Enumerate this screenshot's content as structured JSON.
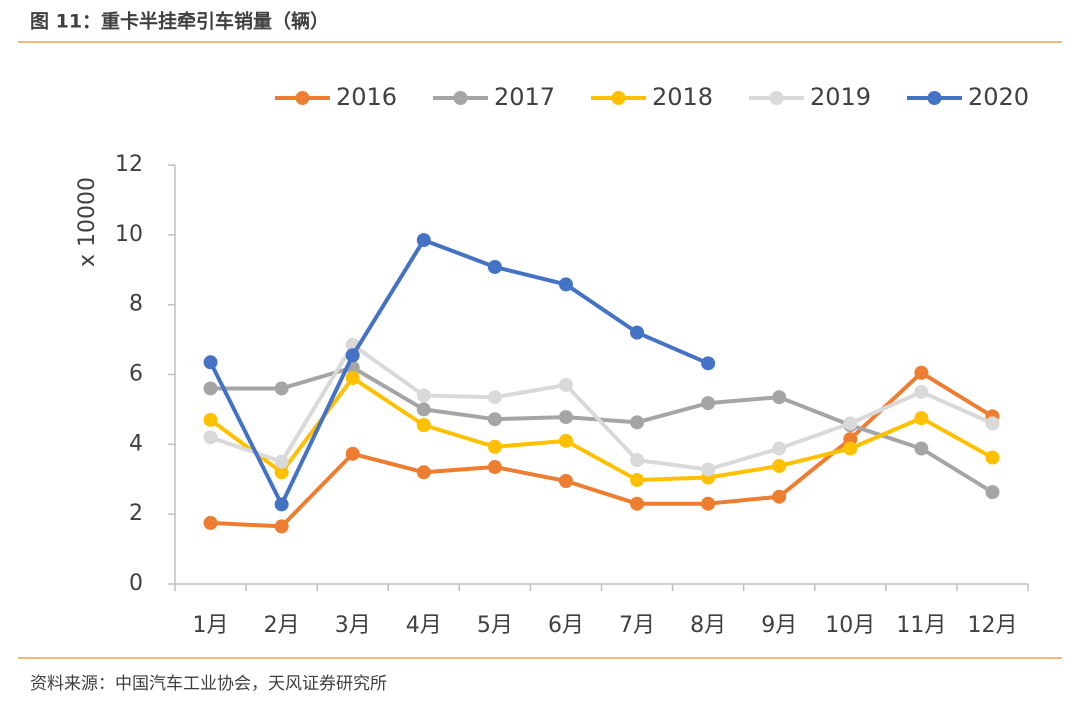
{
  "chart_data": {
    "type": "line",
    "title": "图 11：重卡半挂牵引车销量（辆）",
    "source": "资料来源：中国汽车工业协会，天风证券研究所",
    "y_label": "x 10000",
    "categories": [
      "1月",
      "2月",
      "3月",
      "4月",
      "5月",
      "6月",
      "7月",
      "8月",
      "9月",
      "10月",
      "11月",
      "12月"
    ],
    "series": [
      {
        "name": "2016",
        "color": "#ed7d31",
        "values": [
          1.75,
          1.65,
          3.73,
          3.2,
          3.35,
          2.95,
          2.3,
          2.3,
          2.5,
          4.15,
          6.05,
          4.8
        ]
      },
      {
        "name": "2017",
        "color": "#a5a5a5",
        "values": [
          5.6,
          5.6,
          6.2,
          5.0,
          4.72,
          4.78,
          4.63,
          5.18,
          5.35,
          4.55,
          3.88,
          2.63
        ]
      },
      {
        "name": "2018",
        "color": "#ffc000",
        "values": [
          4.7,
          3.2,
          5.9,
          4.55,
          3.93,
          4.1,
          2.98,
          3.05,
          3.38,
          3.88,
          4.75,
          3.62
        ]
      },
      {
        "name": "2019",
        "color": "#d9d9d9",
        "values": [
          4.2,
          3.5,
          6.85,
          5.4,
          5.35,
          5.7,
          3.55,
          3.28,
          3.88,
          4.6,
          5.5,
          4.6
        ]
      },
      {
        "name": "2020",
        "color": "#4472c4",
        "values": [
          6.35,
          2.28,
          6.55,
          9.85,
          9.08,
          8.58,
          7.2,
          6.32,
          null,
          null,
          null,
          null
        ]
      }
    ],
    "ylim": [
      0,
      12
    ],
    "yticks": [
      0,
      2,
      4,
      6,
      8,
      10,
      12
    ],
    "legend": "top"
  }
}
